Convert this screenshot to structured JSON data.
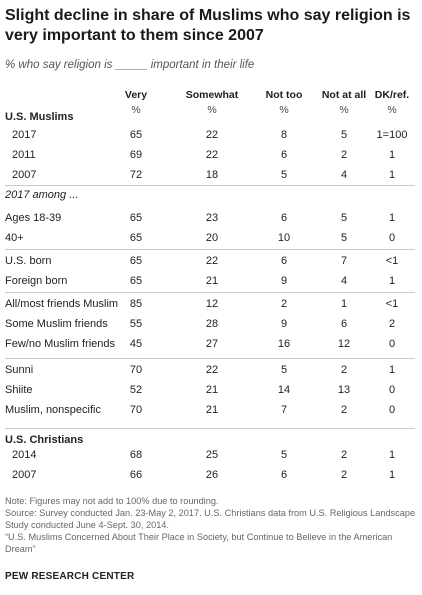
{
  "title": "Slight decline in share of Muslims who say religion is very important to them since 2007",
  "subtitle": "% who say religion is _____ important in their life",
  "chart_data": {
    "type": "table",
    "columns": [
      "Very",
      "Somewhat",
      "Not too",
      "Not at all",
      "DK/ref."
    ],
    "unit_row": [
      "%",
      "%",
      "%",
      "%",
      "%"
    ],
    "groups": [
      {
        "heading": "U.S. Muslims",
        "heading_style": "bold",
        "rows": [
          {
            "label": "2017",
            "values": [
              "65",
              "22",
              "8",
              "5",
              "1=100"
            ]
          },
          {
            "label": "2011",
            "values": [
              "69",
              "22",
              "6",
              "2",
              "1"
            ]
          },
          {
            "label": "2007",
            "values": [
              "72",
              "18",
              "5",
              "4",
              "1"
            ]
          }
        ]
      },
      {
        "heading": "2017 among ...",
        "heading_style": "italic",
        "rows": []
      },
      {
        "heading": "",
        "rows": [
          {
            "label": "Ages 18-39",
            "values": [
              "65",
              "23",
              "6",
              "5",
              "1"
            ]
          },
          {
            "label": "40+",
            "values": [
              "65",
              "20",
              "10",
              "5",
              "0"
            ]
          }
        ]
      },
      {
        "heading": "",
        "rows": [
          {
            "label": "U.S. born",
            "values": [
              "65",
              "22",
              "6",
              "7",
              "<1"
            ]
          },
          {
            "label": "Foreign born",
            "values": [
              "65",
              "21",
              "9",
              "4",
              "1"
            ]
          }
        ]
      },
      {
        "heading": "",
        "rows": [
          {
            "label": "All/most friends Muslim",
            "values": [
              "85",
              "12",
              "2",
              "1",
              "<1"
            ]
          },
          {
            "label": "Some Muslim friends",
            "values": [
              "55",
              "28",
              "9",
              "6",
              "2"
            ]
          },
          {
            "label": "Few/no Muslim friends",
            "values": [
              "45",
              "27",
              "16",
              "12",
              "0"
            ]
          }
        ]
      },
      {
        "heading": "",
        "rows": [
          {
            "label": "Sunni",
            "values": [
              "70",
              "22",
              "5",
              "2",
              "1"
            ]
          },
          {
            "label": "Shiite",
            "values": [
              "52",
              "21",
              "14",
              "13",
              "0"
            ]
          },
          {
            "label": "Muslim, nonspecific",
            "values": [
              "70",
              "21",
              "7",
              "2",
              "0"
            ]
          }
        ]
      },
      {
        "heading": "U.S. Christians",
        "heading_style": "bold",
        "rows": [
          {
            "label": "2014",
            "values": [
              "68",
              "25",
              "5",
              "2",
              "1"
            ]
          },
          {
            "label": "2007",
            "values": [
              "66",
              "26",
              "6",
              "2",
              "1"
            ]
          }
        ]
      }
    ]
  },
  "notes": [
    "Note: Figures may not add to 100% due to rounding.",
    "Source: Survey conducted Jan. 23-May 2, 2017. U.S. Christians data from U.S. Religious Landscape Study conducted June 4-Sept. 30, 2014.",
    "“U.S. Muslims Concerned About Their Place in Society, but Continue to Believe in the American Dream”"
  ],
  "source_org": "PEW RESEARCH CENTER",
  "colors": {
    "stripe": "#f0f0f0",
    "divider": "#c9c9c9",
    "text": "#222222",
    "note_text": "#666666"
  }
}
